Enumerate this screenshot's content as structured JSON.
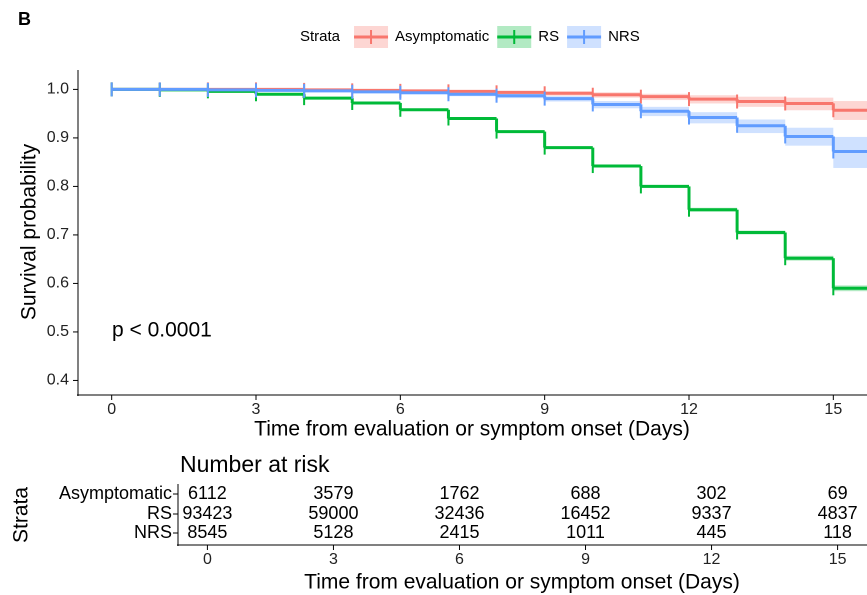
{
  "panel_label": "B",
  "chart_data": [
    {
      "type": "step",
      "legend_title": "Strata",
      "legend_position": "top",
      "xlabel": "Time from evaluation or symptom onset (Days)",
      "ylabel": "Survival probability",
      "annotation": "p < 0.0001",
      "x": [
        0,
        1,
        2,
        3,
        4,
        5,
        6,
        7,
        8,
        9,
        10,
        11,
        12,
        13,
        14,
        15
      ],
      "xlim": [
        -0.7,
        15.7
      ],
      "xticks": [
        0,
        3,
        6,
        9,
        12,
        15
      ],
      "ylim": [
        0.37,
        1.04
      ],
      "yticks": [
        {
          "value": 0.4,
          "label": "0.4"
        },
        {
          "value": 0.5,
          "label": "0.5"
        },
        {
          "value": 0.6,
          "label": "0.6"
        },
        {
          "value": 0.7,
          "label": "0.7"
        },
        {
          "value": 0.8,
          "label": "0.8"
        },
        {
          "value": 0.9,
          "label": "0.9"
        },
        {
          "value": 1,
          "label": "1.0"
        }
      ],
      "series": [
        {
          "name": "Asymptomatic",
          "color": "#F8766D",
          "values": [
            1,
            1,
            1,
            1,
            0.999,
            0.998,
            0.997,
            0.996,
            0.994,
            0.992,
            0.989,
            0.985,
            0.98,
            0.975,
            0.971,
            0.957
          ],
          "ci_lower": [
            1,
            1,
            0.999,
            0.999,
            0.998,
            0.996,
            0.995,
            0.993,
            0.99,
            0.987,
            0.983,
            0.978,
            0.971,
            0.964,
            0.957,
            0.937
          ],
          "ci_upper": [
            1,
            1,
            1,
            1,
            1,
            0.999,
            0.999,
            0.998,
            0.997,
            0.996,
            0.994,
            0.991,
            0.988,
            0.985,
            0.983,
            0.976
          ]
        },
        {
          "name": "RS",
          "color": "#00BA38",
          "values": [
            1,
            0.999,
            0.996,
            0.99,
            0.982,
            0.972,
            0.958,
            0.94,
            0.913,
            0.88,
            0.842,
            0.8,
            0.752,
            0.705,
            0.652,
            0.59
          ],
          "ci_lower": [
            1,
            0.999,
            0.995,
            0.989,
            0.981,
            0.971,
            0.957,
            0.938,
            0.911,
            0.878,
            0.839,
            0.797,
            0.748,
            0.701,
            0.647,
            0.584
          ],
          "ci_upper": [
            1,
            0.999,
            0.997,
            0.991,
            0.983,
            0.973,
            0.959,
            0.942,
            0.915,
            0.882,
            0.845,
            0.803,
            0.756,
            0.709,
            0.657,
            0.596
          ]
        },
        {
          "name": "NRS",
          "color": "#619CFF",
          "values": [
            1,
            1,
            0.999,
            0.998,
            0.997,
            0.995,
            0.993,
            0.99,
            0.987,
            0.981,
            0.969,
            0.955,
            0.942,
            0.925,
            0.903,
            0.872
          ],
          "ci_lower": [
            1,
            1,
            0.998,
            0.997,
            0.995,
            0.993,
            0.99,
            0.986,
            0.982,
            0.975,
            0.961,
            0.945,
            0.93,
            0.91,
            0.884,
            0.838
          ],
          "ci_upper": [
            1,
            1,
            1,
            0.999,
            0.998,
            0.997,
            0.995,
            0.993,
            0.991,
            0.986,
            0.976,
            0.964,
            0.953,
            0.938,
            0.921,
            0.902
          ]
        }
      ]
    },
    {
      "type": "risk_table",
      "title": "Number at risk",
      "ylabel": "Strata",
      "xlabel": "Time from evaluation or symptom onset (Days)",
      "categories": [
        "Asymptomatic",
        "RS",
        "NRS"
      ],
      "x": [
        0,
        3,
        6,
        9,
        12,
        15
      ],
      "xlim": [
        -0.7,
        15.7
      ],
      "xticks": [
        0,
        3,
        6,
        9,
        12,
        15
      ],
      "rows": [
        [
          6112,
          3579,
          1762,
          688,
          302,
          69
        ],
        [
          93423,
          59000,
          32436,
          16452,
          9337,
          4837
        ],
        [
          8545,
          5128,
          2415,
          1011,
          445,
          118
        ]
      ]
    }
  ]
}
